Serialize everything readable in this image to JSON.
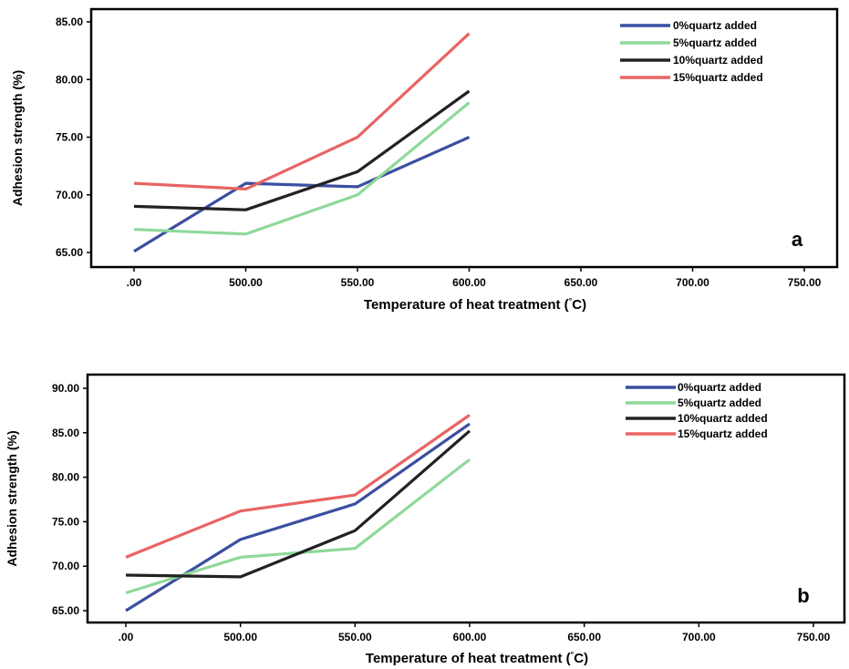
{
  "chart_data": [
    {
      "type": "line",
      "panel_label": "a",
      "xlabel": "Temperature of heat treatment (",
      "xlabel_unit": "C)",
      "ylabel": "Adhesion strength (%)",
      "x_tick_labels": [
        ".00",
        "500.00",
        "550.00",
        "600.00",
        "650.00",
        "700.00",
        "750.00"
      ],
      "y_tick_labels": [
        "65.00",
        "70.00",
        "75.00",
        "80.00",
        "85.00"
      ],
      "y_ticks": [
        65,
        70,
        75,
        80,
        85
      ],
      "ylim": [
        64,
        87
      ],
      "x_category_count": 7,
      "grid": false,
      "legend_position": "top-right",
      "series": [
        {
          "name": "0%quartz added",
          "color": "#3b4fa0",
          "values": [
            65.1,
            71.0,
            70.7,
            75.0
          ]
        },
        {
          "name": "5%quartz added",
          "color": "#8fd99a",
          "values": [
            67.0,
            66.6,
            70.0,
            78.0
          ]
        },
        {
          "name": "10%quartz added",
          "color": "#222222",
          "values": [
            69.0,
            68.7,
            72.0,
            79.0
          ]
        },
        {
          "name": "15%quartz added",
          "color": "#e86464",
          "values": [
            71.0,
            70.5,
            75.0,
            84.0
          ]
        }
      ]
    },
    {
      "type": "line",
      "panel_label": "b",
      "xlabel": "Temperature of heat treatment (",
      "xlabel_unit": "C)",
      "ylabel": "Adhesion strength (%)",
      "x_tick_labels": [
        ".00",
        "500.00",
        "550.00",
        "600.00",
        "650.00",
        "700.00",
        "750.00"
      ],
      "y_tick_labels": [
        "65.00",
        "70.00",
        "75.00",
        "80.00",
        "85.00",
        "90.00"
      ],
      "y_ticks": [
        65,
        70,
        75,
        80,
        85,
        90
      ],
      "ylim": [
        63.5,
        92.5
      ],
      "x_category_count": 7,
      "grid": false,
      "legend_position": "top-right",
      "series": [
        {
          "name": "0%quartz added",
          "color": "#3b4fa0",
          "values": [
            65.0,
            73.0,
            77.0,
            86.0
          ]
        },
        {
          "name": "5%quartz added",
          "color": "#8fd99a",
          "values": [
            67.0,
            71.0,
            72.0,
            82.0
          ]
        },
        {
          "name": "10%quartz added",
          "color": "#222222",
          "values": [
            69.0,
            68.8,
            74.0,
            85.2
          ]
        },
        {
          "name": "15%quartz added",
          "color": "#e86464",
          "values": [
            71.0,
            76.2,
            78.0,
            87.0
          ]
        }
      ]
    }
  ]
}
